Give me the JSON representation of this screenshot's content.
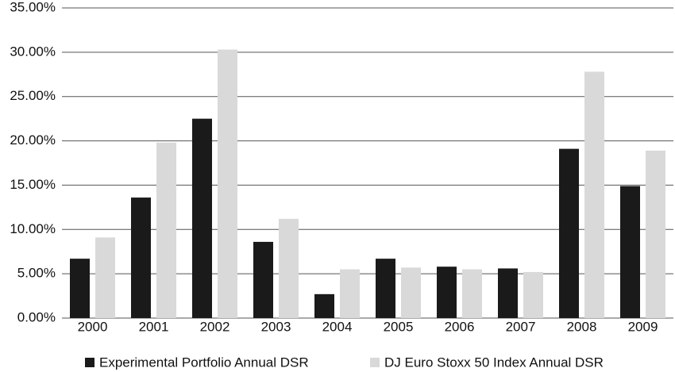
{
  "chart_data": {
    "type": "bar",
    "categories": [
      "2000",
      "2001",
      "2002",
      "2003",
      "2004",
      "2005",
      "2006",
      "2007",
      "2008",
      "2009"
    ],
    "series": [
      {
        "name": "Experimental Portfolio Annual DSR",
        "color": "#1a1a1a",
        "values": [
          6.7,
          13.6,
          22.5,
          8.6,
          2.7,
          6.7,
          5.8,
          5.6,
          19.1,
          14.9
        ]
      },
      {
        "name": "DJ Euro Stoxx 50 Index Annual DSR",
        "color": "#d9d9d9",
        "values": [
          9.1,
          19.8,
          30.3,
          11.2,
          5.5,
          5.7,
          5.5,
          5.2,
          27.8,
          18.9
        ]
      }
    ],
    "ylim": [
      0,
      35
    ],
    "yticks": [
      {
        "value": 0,
        "label": "0.00%"
      },
      {
        "value": 5,
        "label": "5.00%"
      },
      {
        "value": 10,
        "label": "10.00%"
      },
      {
        "value": 15,
        "label": "15.00%"
      },
      {
        "value": 20,
        "label": "20.00%"
      },
      {
        "value": 25,
        "label": "25.00%"
      },
      {
        "value": 30,
        "label": "30.00%"
      },
      {
        "value": 35,
        "label": "35.00%"
      }
    ],
    "grid": true,
    "legend": "bottom"
  }
}
